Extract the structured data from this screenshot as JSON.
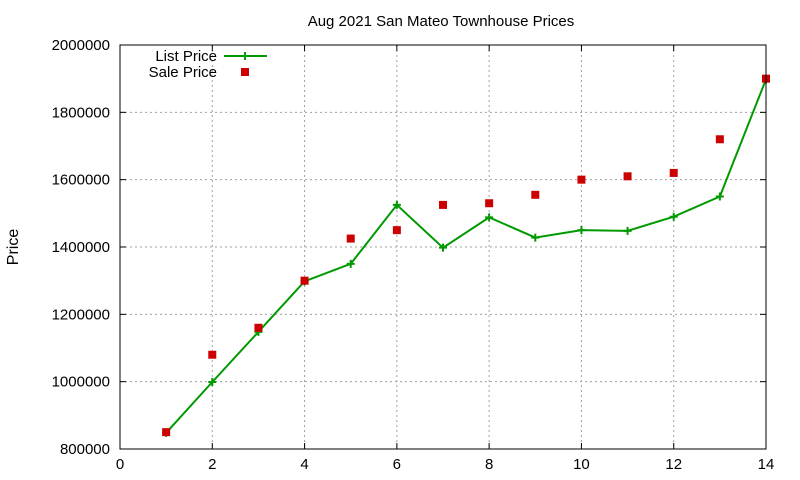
{
  "chart_data": {
    "type": "line",
    "title": "Aug 2021 San Mateo Townhouse Prices",
    "xlabel": "",
    "ylabel": "Price",
    "xlim": [
      0,
      14
    ],
    "ylim": [
      800000,
      2000000
    ],
    "x_ticks": [
      "0",
      "2",
      "4",
      "6",
      "8",
      "10",
      "12",
      "14"
    ],
    "y_ticks": [
      "800000",
      "1000000",
      "1200000",
      "1400000",
      "1600000",
      "1800000",
      "2000000"
    ],
    "grid": true,
    "legend_position": "top-left",
    "series": [
      {
        "name": "List Price",
        "style": "line+cross",
        "color": "#009900",
        "x": [
          1,
          2,
          3,
          4,
          5,
          6,
          7,
          8,
          9,
          10,
          11,
          12,
          13,
          14
        ],
        "y": [
          848000,
          999000,
          1148000,
          1298000,
          1350000,
          1525000,
          1398000,
          1488000,
          1428000,
          1450000,
          1448000,
          1490000,
          1550000,
          1898000
        ]
      },
      {
        "name": "Sale Price",
        "style": "square-markers",
        "color": "#cc0000",
        "x": [
          1,
          2,
          3,
          4,
          5,
          6,
          7,
          8,
          9,
          10,
          11,
          12,
          13,
          14
        ],
        "y": [
          850000,
          1080000,
          1160000,
          1300000,
          1425000,
          1450000,
          1525000,
          1530000,
          1555000,
          1600000,
          1610000,
          1620000,
          1720000,
          1900000
        ]
      }
    ]
  }
}
